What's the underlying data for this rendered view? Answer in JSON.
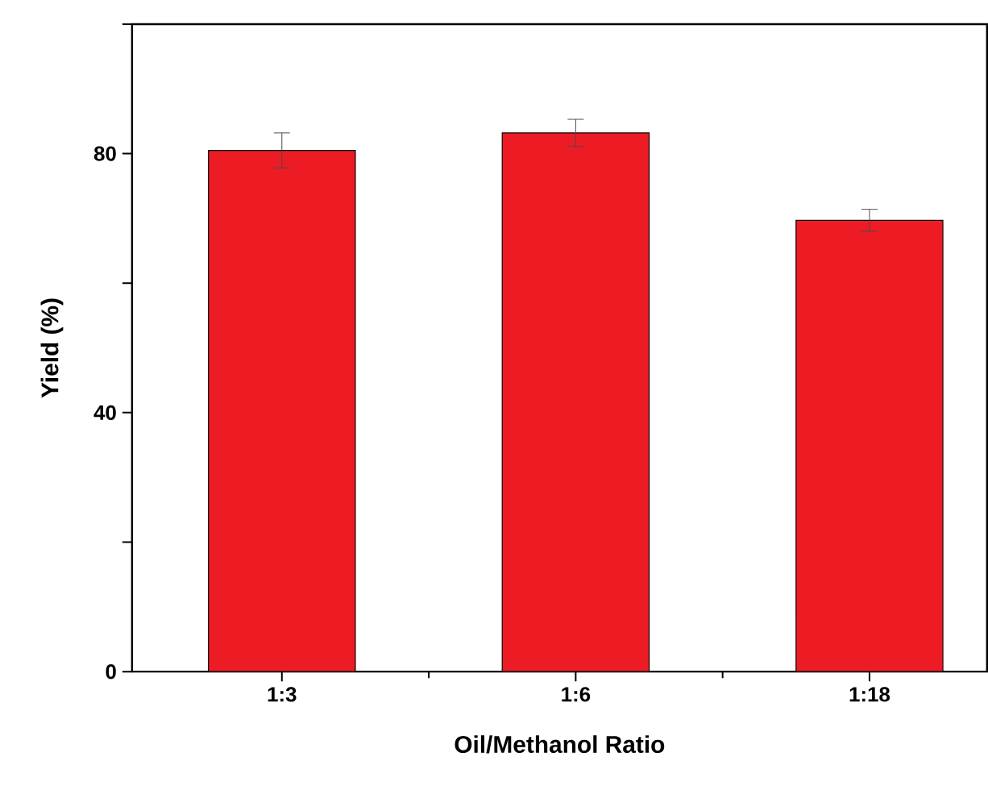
{
  "chart_data": {
    "type": "bar",
    "xlabel": "Oil/Methanol Ratio",
    "ylabel": "Yield (%)",
    "categories": [
      "1:3",
      "1:6",
      "1:18"
    ],
    "values": [
      80.5,
      83.2,
      69.7
    ],
    "errors": [
      2.7,
      2.1,
      1.7
    ],
    "color": "#ed1c24",
    "ylim": [
      0,
      100
    ],
    "yticks": [
      0,
      {
        "value": 20,
        "label": null
      },
      40,
      {
        "value": 60,
        "label": null
      },
      80,
      {
        "value": 100,
        "label": null
      }
    ],
    "grid": false
  }
}
